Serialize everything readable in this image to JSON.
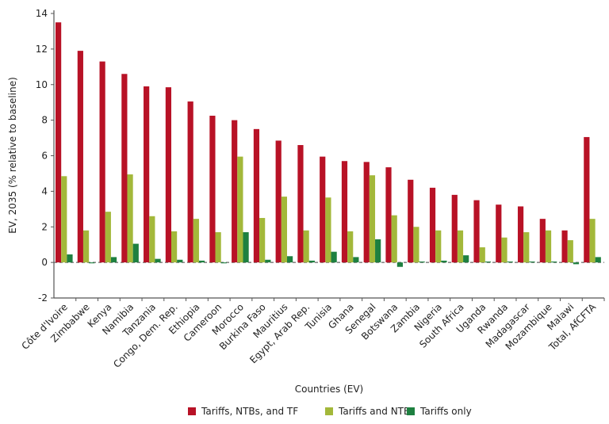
{
  "chart_data": {
    "type": "bar",
    "xlabel": "Countries (EV)",
    "ylabel": "EV, 2035 (% relative to baseline)",
    "ylim": [
      -2,
      14
    ],
    "yticks": [
      -2,
      0,
      2,
      4,
      6,
      8,
      10,
      12,
      14
    ],
    "grid": false,
    "legend_position": "bottom",
    "categories": [
      "Côte d'Ivoire",
      "Zimbabwe",
      "Kenya",
      "Namibia",
      "Tanzania",
      "Congo, Dem. Rep.",
      "Ethiopia",
      "Cameroon",
      "Morocco",
      "Burkina Faso",
      "Mauritius",
      "Egypt, Arab Rep.",
      "Tunisia",
      "Ghana",
      "Senegal",
      "Botswana",
      "Zambia",
      "Nigeria",
      "South Africa",
      "Uganda",
      "Rwanda",
      "Madagascar",
      "Mozambique",
      "Malawi",
      "Total, AfCFTA"
    ],
    "series": [
      {
        "name": "Tariffs, NTBs, and TF",
        "color": "#b81226",
        "values": [
          13.5,
          11.9,
          11.3,
          10.6,
          9.9,
          9.85,
          9.05,
          8.25,
          8.0,
          7.5,
          6.85,
          6.6,
          5.95,
          5.7,
          5.65,
          5.35,
          4.65,
          4.2,
          3.8,
          3.5,
          3.25,
          3.15,
          2.45,
          1.8,
          7.05
        ]
      },
      {
        "name": "Tariffs and NTBs",
        "color": "#a3b83a",
        "values": [
          4.85,
          1.8,
          2.85,
          4.95,
          2.6,
          1.75,
          2.45,
          1.7,
          5.95,
          2.5,
          3.7,
          1.8,
          3.65,
          1.75,
          4.9,
          2.65,
          2.0,
          1.8,
          1.8,
          0.85,
          1.4,
          1.7,
          1.8,
          1.25,
          2.45
        ]
      },
      {
        "name": "Tariffs only",
        "color": "#1e8040",
        "values": [
          0.45,
          -0.05,
          0.3,
          1.05,
          0.2,
          0.15,
          0.1,
          -0.05,
          1.7,
          0.15,
          0.35,
          0.1,
          0.6,
          0.3,
          1.3,
          -0.25,
          0.05,
          0.1,
          0.4,
          0.05,
          0.05,
          0.05,
          0.05,
          -0.1,
          0.3
        ]
      }
    ]
  }
}
